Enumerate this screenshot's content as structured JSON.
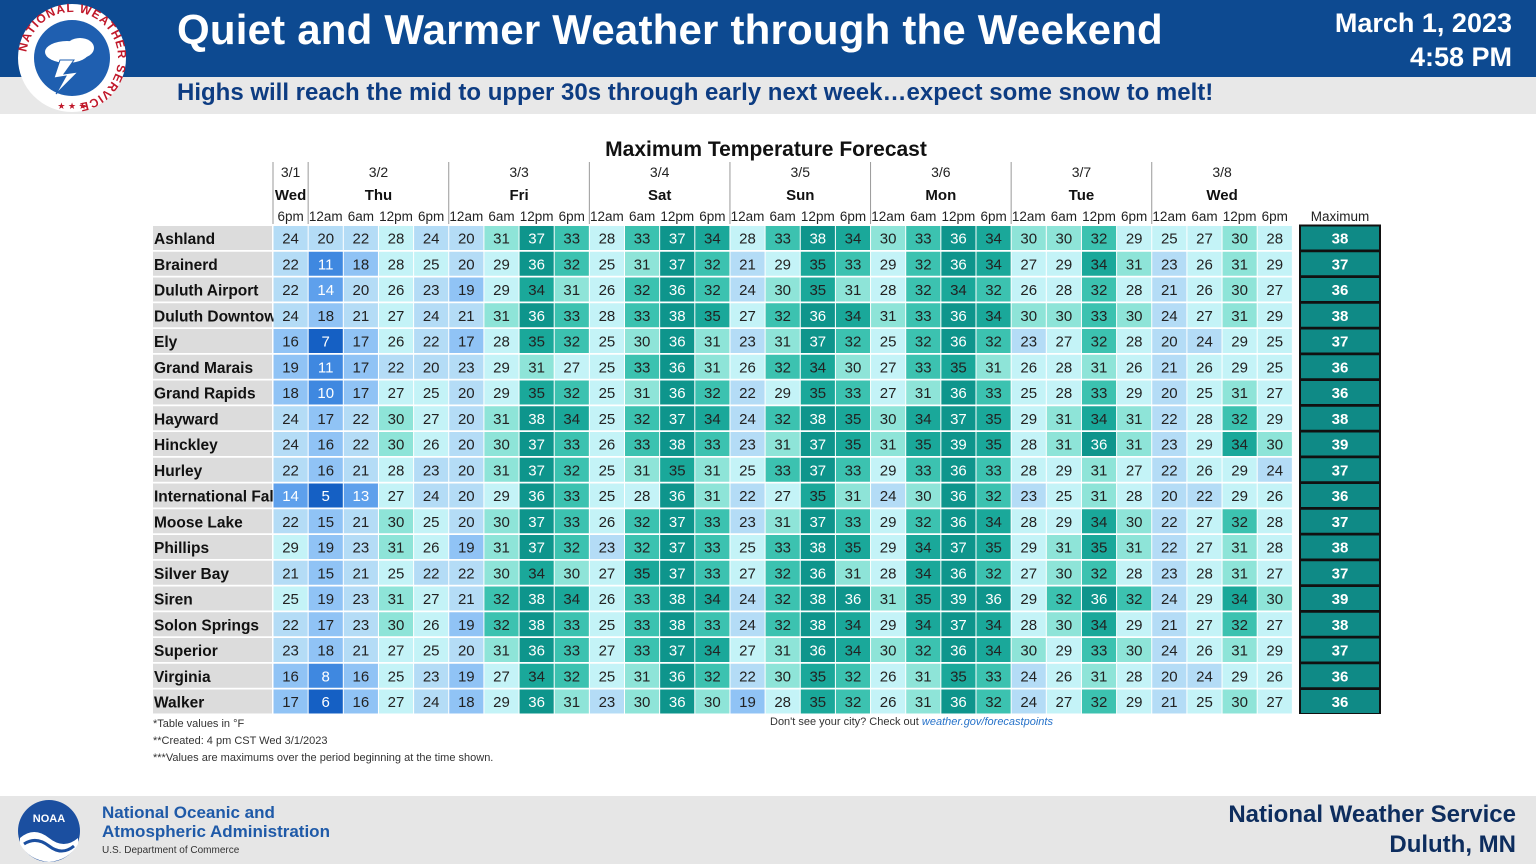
{
  "header": {
    "title": "Quiet and Warmer Weather through the Weekend",
    "date": "March 1, 2023",
    "time": "4:58 PM",
    "subtitle": "Highs will reach the mid to upper 30s through early next week…expect some snow to melt!",
    "logo_text": "NATIONAL WEATHER SERVICE"
  },
  "chart_data": {
    "type": "table",
    "title": "Maximum Temperature Forecast",
    "day_groups": [
      {
        "date": "3/1",
        "day": "Wed",
        "periods": [
          "6pm"
        ]
      },
      {
        "date": "3/2",
        "day": "Thu",
        "periods": [
          "12am",
          "6am",
          "12pm",
          "6pm"
        ]
      },
      {
        "date": "3/3",
        "day": "Fri",
        "periods": [
          "12am",
          "6am",
          "12pm",
          "6pm"
        ]
      },
      {
        "date": "3/4",
        "day": "Sat",
        "periods": [
          "12am",
          "6am",
          "12pm",
          "6pm"
        ]
      },
      {
        "date": "3/5",
        "day": "Sun",
        "periods": [
          "12am",
          "6am",
          "12pm",
          "6pm"
        ]
      },
      {
        "date": "3/6",
        "day": "Mon",
        "periods": [
          "12am",
          "6am",
          "12pm",
          "6pm"
        ]
      },
      {
        "date": "3/7",
        "day": "Tue",
        "periods": [
          "12am",
          "6am",
          "12pm",
          "6pm"
        ]
      },
      {
        "date": "3/8",
        "day": "Wed",
        "periods": [
          "12am",
          "6am",
          "12pm",
          "6pm"
        ]
      }
    ],
    "maximum_header": "Maximum",
    "rows": [
      {
        "city": "Ashland",
        "values": [
          24,
          20,
          22,
          28,
          24,
          20,
          31,
          37,
          33,
          28,
          33,
          37,
          34,
          28,
          33,
          38,
          34,
          30,
          33,
          36,
          34,
          30,
          30,
          32,
          29,
          25,
          27,
          30,
          28
        ],
        "max": 38
      },
      {
        "city": "Brainerd",
        "values": [
          22,
          11,
          18,
          28,
          25,
          20,
          29,
          36,
          32,
          25,
          31,
          37,
          32,
          21,
          29,
          35,
          33,
          29,
          32,
          36,
          34,
          27,
          29,
          34,
          31,
          23,
          26,
          31,
          29
        ],
        "max": 37
      },
      {
        "city": "Duluth Airport",
        "values": [
          22,
          14,
          20,
          26,
          23,
          19,
          29,
          34,
          31,
          26,
          32,
          36,
          32,
          24,
          30,
          35,
          31,
          28,
          32,
          34,
          32,
          26,
          28,
          32,
          28,
          21,
          26,
          30,
          27
        ],
        "max": 36
      },
      {
        "city": "Duluth Downtown",
        "values": [
          24,
          18,
          21,
          27,
          24,
          21,
          31,
          36,
          33,
          28,
          33,
          38,
          35,
          27,
          32,
          36,
          34,
          31,
          33,
          36,
          34,
          30,
          30,
          33,
          30,
          24,
          27,
          31,
          29
        ],
        "max": 38
      },
      {
        "city": "Ely",
        "values": [
          16,
          7,
          17,
          26,
          22,
          17,
          28,
          35,
          32,
          25,
          30,
          36,
          31,
          23,
          31,
          37,
          32,
          25,
          32,
          36,
          32,
          23,
          27,
          32,
          28,
          20,
          24,
          29,
          25
        ],
        "max": 37
      },
      {
        "city": "Grand Marais",
        "values": [
          19,
          11,
          17,
          22,
          20,
          23,
          29,
          31,
          27,
          25,
          33,
          36,
          31,
          26,
          32,
          34,
          30,
          27,
          33,
          35,
          31,
          26,
          28,
          31,
          26,
          21,
          26,
          29,
          25
        ],
        "max": 36
      },
      {
        "city": "Grand Rapids",
        "values": [
          18,
          10,
          17,
          27,
          25,
          20,
          29,
          35,
          32,
          25,
          31,
          36,
          32,
          22,
          29,
          35,
          33,
          27,
          31,
          36,
          33,
          25,
          28,
          33,
          29,
          20,
          25,
          31,
          27
        ],
        "max": 36
      },
      {
        "city": "Hayward",
        "values": [
          24,
          17,
          22,
          30,
          27,
          20,
          31,
          38,
          34,
          25,
          32,
          37,
          34,
          24,
          32,
          38,
          35,
          30,
          34,
          37,
          35,
          29,
          31,
          34,
          31,
          22,
          28,
          32,
          29
        ],
        "max": 38
      },
      {
        "city": "Hinckley",
        "values": [
          24,
          16,
          22,
          30,
          26,
          20,
          30,
          37,
          33,
          26,
          33,
          38,
          33,
          23,
          31,
          37,
          35,
          31,
          35,
          39,
          35,
          28,
          31,
          36,
          31,
          23,
          29,
          34,
          30
        ],
        "max": 39
      },
      {
        "city": "Hurley",
        "values": [
          22,
          16,
          21,
          28,
          23,
          20,
          31,
          37,
          32,
          25,
          31,
          35,
          31,
          25,
          33,
          37,
          33,
          29,
          33,
          36,
          33,
          28,
          29,
          31,
          27,
          22,
          26,
          29,
          24
        ],
        "max": 37
      },
      {
        "city": "International Falls",
        "values": [
          14,
          5,
          13,
          27,
          24,
          20,
          29,
          36,
          33,
          25,
          28,
          36,
          31,
          22,
          27,
          35,
          31,
          24,
          30,
          36,
          32,
          23,
          25,
          31,
          28,
          20,
          22,
          29,
          26
        ],
        "max": 36
      },
      {
        "city": "Moose Lake",
        "values": [
          22,
          15,
          21,
          30,
          25,
          20,
          30,
          37,
          33,
          26,
          32,
          37,
          33,
          23,
          31,
          37,
          33,
          29,
          32,
          36,
          34,
          28,
          29,
          34,
          30,
          22,
          27,
          32,
          28
        ],
        "max": 37
      },
      {
        "city": "Phillips",
        "values": [
          29,
          19,
          23,
          31,
          26,
          19,
          31,
          37,
          32,
          23,
          32,
          37,
          33,
          25,
          33,
          38,
          35,
          29,
          34,
          37,
          35,
          29,
          31,
          35,
          31,
          22,
          27,
          31,
          28
        ],
        "max": 38
      },
      {
        "city": "Silver Bay",
        "values": [
          21,
          15,
          21,
          25,
          22,
          22,
          30,
          34,
          30,
          27,
          35,
          37,
          33,
          27,
          32,
          36,
          31,
          28,
          34,
          36,
          32,
          27,
          30,
          32,
          28,
          23,
          28,
          31,
          27
        ],
        "max": 37
      },
      {
        "city": "Siren",
        "values": [
          25,
          19,
          23,
          31,
          27,
          21,
          32,
          38,
          34,
          26,
          33,
          38,
          34,
          24,
          32,
          38,
          36,
          31,
          35,
          39,
          36,
          29,
          32,
          36,
          32,
          24,
          29,
          34,
          30
        ],
        "max": 39
      },
      {
        "city": "Solon Springs",
        "values": [
          22,
          17,
          23,
          30,
          26,
          19,
          32,
          38,
          33,
          25,
          33,
          38,
          33,
          24,
          32,
          38,
          34,
          29,
          34,
          37,
          34,
          28,
          30,
          34,
          29,
          21,
          27,
          32,
          27
        ],
        "max": 38
      },
      {
        "city": "Superior",
        "values": [
          23,
          18,
          21,
          27,
          25,
          20,
          31,
          36,
          33,
          27,
          33,
          37,
          34,
          27,
          31,
          36,
          34,
          30,
          32,
          36,
          34,
          30,
          29,
          33,
          30,
          24,
          26,
          31,
          29
        ],
        "max": 37
      },
      {
        "city": "Virginia",
        "values": [
          16,
          8,
          16,
          25,
          23,
          19,
          27,
          34,
          32,
          25,
          31,
          36,
          32,
          22,
          30,
          35,
          32,
          26,
          31,
          35,
          33,
          24,
          26,
          31,
          28,
          20,
          24,
          29,
          26
        ],
        "max": 36
      },
      {
        "city": "Walker",
        "values": [
          17,
          6,
          16,
          27,
          24,
          18,
          29,
          36,
          31,
          23,
          30,
          36,
          30,
          19,
          28,
          35,
          32,
          26,
          31,
          36,
          32,
          24,
          27,
          32,
          29,
          21,
          25,
          30,
          27
        ],
        "max": 36
      }
    ],
    "notes": [
      "*Table values in °F",
      "**Created: 4 pm CST Wed 3/1/2023",
      "***Values are maximums over the period beginning at the time shown."
    ],
    "cta_text": "Don't see your city? Check out",
    "cta_link": "weather.gov/forecastpoints"
  },
  "footer": {
    "noaa_line1": "National Oceanic and",
    "noaa_line2": "Atmospheric Administration",
    "noaa_dept": "U.S. Department of Commerce",
    "noaa_logo_text": "NOAA",
    "nws_line1": "National Weather Service",
    "nws_line2": "Duluth, MN"
  },
  "colors": {
    "header_bg": "#0d4a91",
    "subtitle_text": "#0d3c82",
    "footer_text": "#0d2d5e",
    "max_cell": "#0f8a86"
  }
}
